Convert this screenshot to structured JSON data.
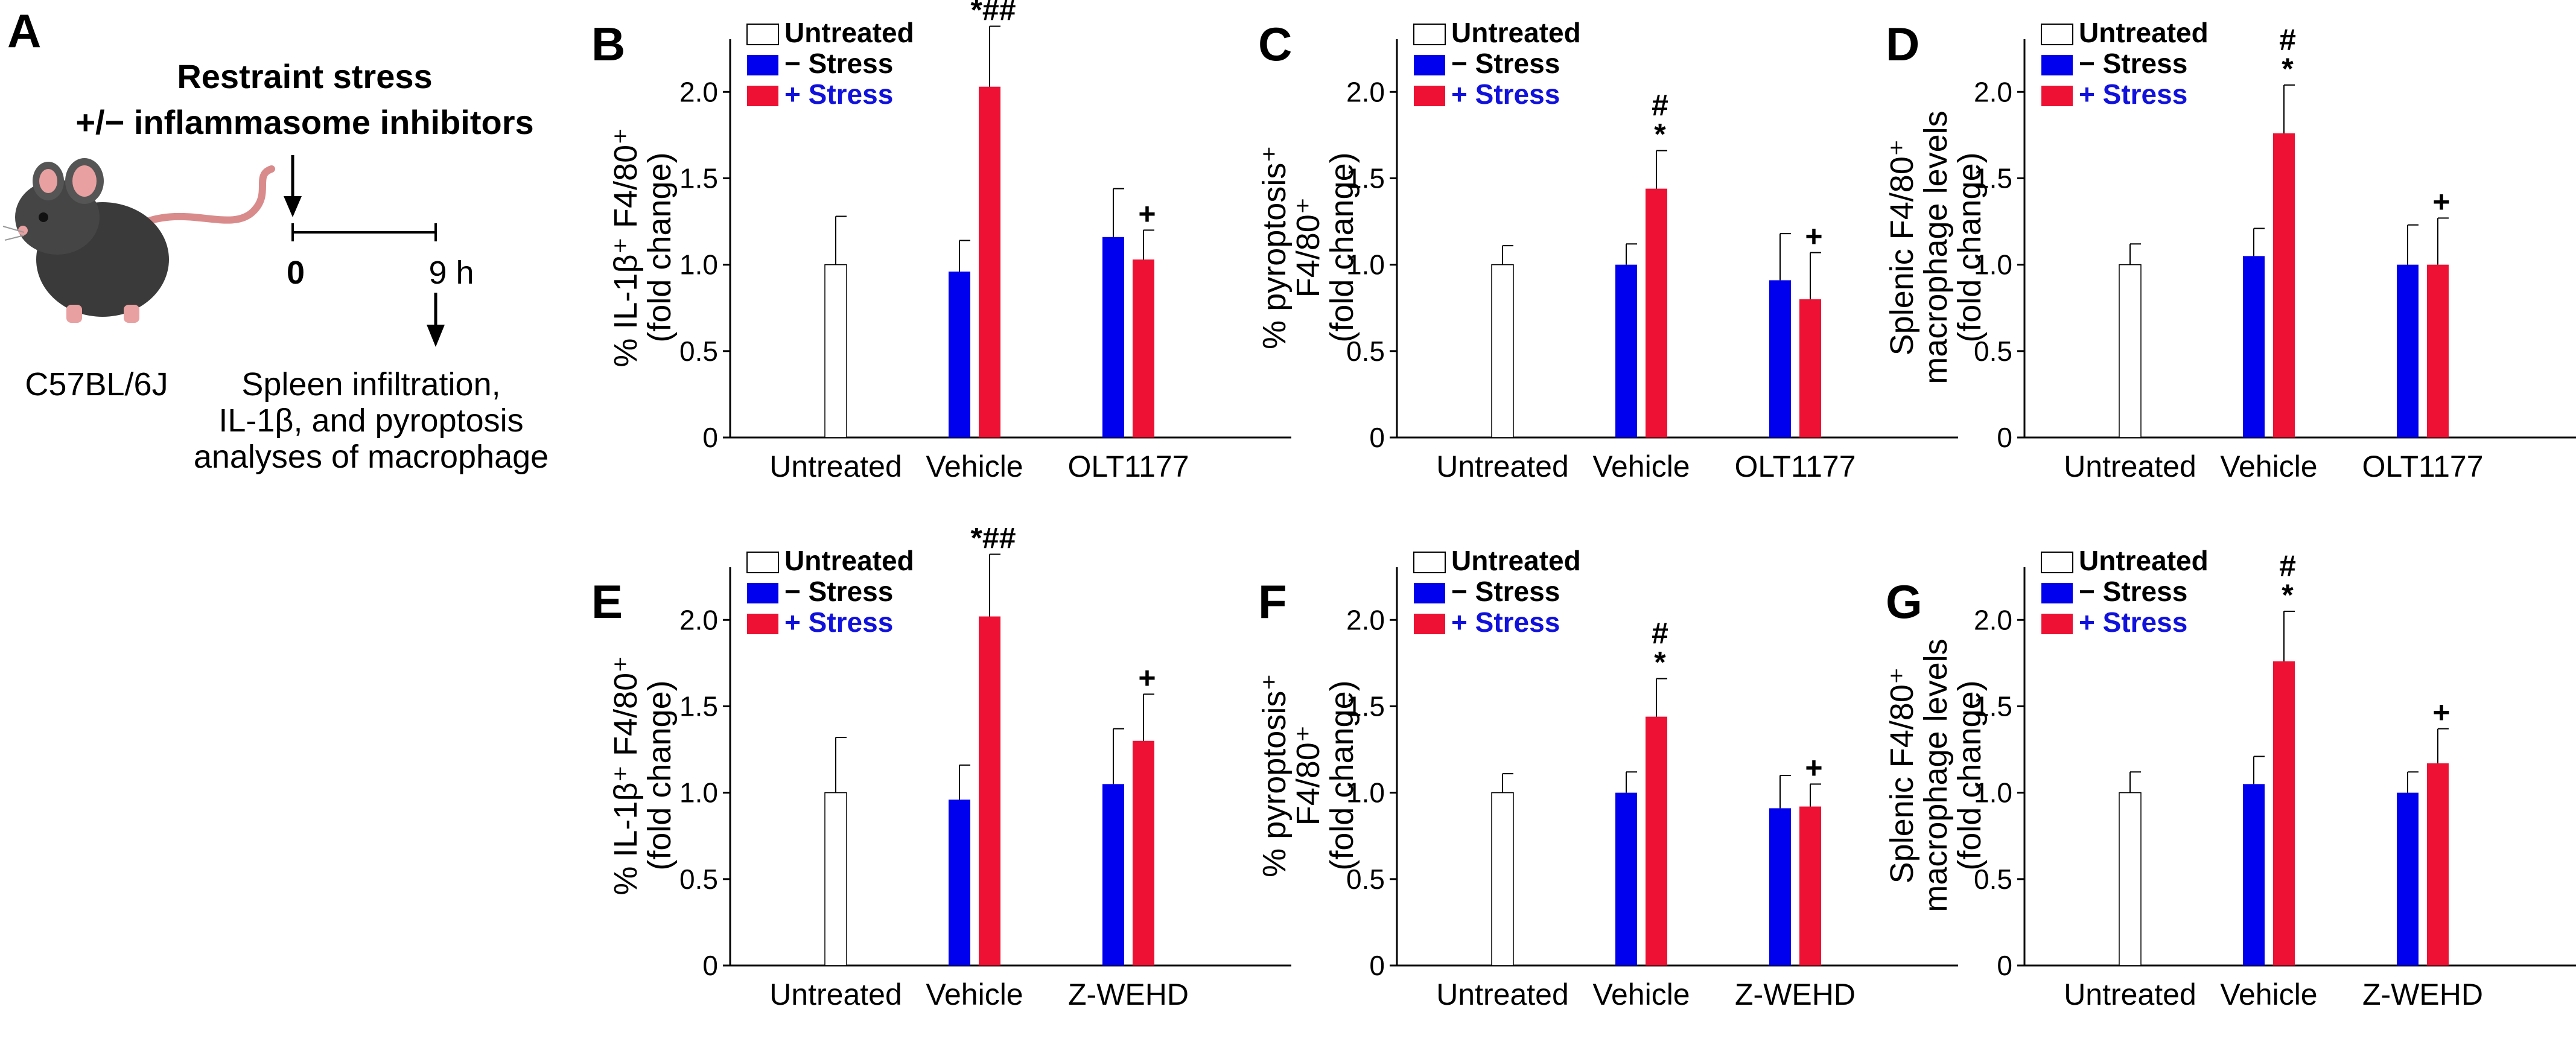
{
  "schematic": {
    "panel_letter": "A",
    "title_line1": "Restraint stress",
    "title_line2": "+/− inflammasome inhibitors",
    "time_start": "0",
    "time_end": "9 h",
    "strain": "C57BL/6J",
    "readout_line1": "Spleen infiltration,",
    "readout_line2": "IL-1β, and pyroptosis",
    "readout_line3": "analyses of macrophage",
    "icon": "mouse-icon"
  },
  "colors": {
    "untreated_fill": "#ffffff",
    "minus_stress": "#0000ee",
    "plus_stress": "#ee1133",
    "plus_stress_legend_text": "#1111dd",
    "axis": "#000000"
  },
  "chart_data": [
    {
      "id": "B",
      "type": "bar",
      "ylabel_line1": "% IL-1β⁺ F4/80⁺",
      "ylabel_line2": "(fold change)",
      "ylim": [
        0,
        2.2
      ],
      "yticks": [
        "0",
        "0.5",
        "1.0",
        "1.5",
        "2.0"
      ],
      "categories": [
        "Untreated",
        "Vehicle",
        "OLT1177"
      ],
      "legend": [
        "Untreated",
        "− Stress",
        "+ Stress"
      ],
      "bars": [
        {
          "group": "Untreated",
          "series": "Untreated",
          "value": 1.0,
          "error": 0.28
        },
        {
          "group": "Vehicle",
          "series": "− Stress",
          "value": 0.96,
          "error": 0.18
        },
        {
          "group": "Vehicle",
          "series": "+ Stress",
          "value": 2.03,
          "error": 0.35,
          "annotation": "*##"
        },
        {
          "group": "OLT1177",
          "series": "− Stress",
          "value": 1.16,
          "error": 0.28
        },
        {
          "group": "OLT1177",
          "series": "+ Stress",
          "value": 1.03,
          "error": 0.17,
          "annotation": "+"
        }
      ]
    },
    {
      "id": "C",
      "type": "bar",
      "ylabel_line1": "% pyroptosis⁺",
      "ylabel_line2": "F4/80⁺",
      "ylabel_line3": "(fold change)",
      "ylim": [
        0,
        2.2
      ],
      "yticks": [
        "0",
        "0.5",
        "1.0",
        "1.5",
        "2.0"
      ],
      "categories": [
        "Untreated",
        "Vehicle",
        "OLT1177"
      ],
      "legend": [
        "Untreated",
        "− Stress",
        "+ Stress"
      ],
      "bars": [
        {
          "group": "Untreated",
          "series": "Untreated",
          "value": 1.0,
          "error": 0.11
        },
        {
          "group": "Vehicle",
          "series": "− Stress",
          "value": 1.0,
          "error": 0.12
        },
        {
          "group": "Vehicle",
          "series": "+ Stress",
          "value": 1.44,
          "error": 0.22,
          "annotation": "#\n*"
        },
        {
          "group": "OLT1177",
          "series": "− Stress",
          "value": 0.91,
          "error": 0.27
        },
        {
          "group": "OLT1177",
          "series": "+ Stress",
          "value": 0.8,
          "error": 0.27,
          "annotation": "+"
        }
      ]
    },
    {
      "id": "D",
      "type": "bar",
      "ylabel_line1": "Splenic F4/80⁺",
      "ylabel_line2": "macrophage levels",
      "ylabel_line3": "(fold change)",
      "ylim": [
        0,
        2.2
      ],
      "yticks": [
        "0",
        "0.5",
        "1.0",
        "1.5",
        "2.0"
      ],
      "categories": [
        "Untreated",
        "Vehicle",
        "OLT1177"
      ],
      "legend": [
        "Untreated",
        "− Stress",
        "+ Stress"
      ],
      "bars": [
        {
          "group": "Untreated",
          "series": "Untreated",
          "value": 1.0,
          "error": 0.12
        },
        {
          "group": "Vehicle",
          "series": "− Stress",
          "value": 1.05,
          "error": 0.16
        },
        {
          "group": "Vehicle",
          "series": "+ Stress",
          "value": 1.76,
          "error": 0.28,
          "annotation": "#\n*"
        },
        {
          "group": "OLT1177",
          "series": "− Stress",
          "value": 1.0,
          "error": 0.23
        },
        {
          "group": "OLT1177",
          "series": "+ Stress",
          "value": 1.0,
          "error": 0.27,
          "annotation": "+"
        }
      ]
    },
    {
      "id": "E",
      "type": "bar",
      "ylabel_line1": "% IL-1β⁺ F4/80⁺",
      "ylabel_line2": "(fold change)",
      "ylim": [
        0,
        2.2
      ],
      "yticks": [
        "0",
        "0.5",
        "1.0",
        "1.5",
        "2.0"
      ],
      "categories": [
        "Untreated",
        "Vehicle",
        "Z-WEHD"
      ],
      "legend": [
        "Untreated",
        "− Stress",
        "+ Stress"
      ],
      "bars": [
        {
          "group": "Untreated",
          "series": "Untreated",
          "value": 1.0,
          "error": 0.32
        },
        {
          "group": "Vehicle",
          "series": "− Stress",
          "value": 0.96,
          "error": 0.2
        },
        {
          "group": "Vehicle",
          "series": "+ Stress",
          "value": 2.02,
          "error": 0.36,
          "annotation": "*##"
        },
        {
          "group": "Z-WEHD",
          "series": "− Stress",
          "value": 1.05,
          "error": 0.32
        },
        {
          "group": "Z-WEHD",
          "series": "+ Stress",
          "value": 1.3,
          "error": 0.27,
          "annotation": "+"
        }
      ]
    },
    {
      "id": "F",
      "type": "bar",
      "ylabel_line1": "% pyroptosis⁺",
      "ylabel_line2": "F4/80⁺",
      "ylabel_line3": "(fold change)",
      "ylim": [
        0,
        2.2
      ],
      "yticks": [
        "0",
        "0.5",
        "1.0",
        "1.5",
        "2.0"
      ],
      "categories": [
        "Untreated",
        "Vehicle",
        "Z-WEHD"
      ],
      "legend": [
        "Untreated",
        "− Stress",
        "+ Stress"
      ],
      "bars": [
        {
          "group": "Untreated",
          "series": "Untreated",
          "value": 1.0,
          "error": 0.11
        },
        {
          "group": "Vehicle",
          "series": "− Stress",
          "value": 1.0,
          "error": 0.12
        },
        {
          "group": "Vehicle",
          "series": "+ Stress",
          "value": 1.44,
          "error": 0.22,
          "annotation": "#\n*"
        },
        {
          "group": "Z-WEHD",
          "series": "− Stress",
          "value": 0.91,
          "error": 0.19
        },
        {
          "group": "Z-WEHD",
          "series": "+ Stress",
          "value": 0.92,
          "error": 0.13,
          "annotation": "+"
        }
      ]
    },
    {
      "id": "G",
      "type": "bar",
      "ylabel_line1": "Splenic F4/80⁺",
      "ylabel_line2": "macrophage levels",
      "ylabel_line3": "(fold change)",
      "ylim": [
        0,
        2.2
      ],
      "yticks": [
        "0",
        "0.5",
        "1.0",
        "1.5",
        "2.0"
      ],
      "categories": [
        "Untreated",
        "Vehicle",
        "Z-WEHD"
      ],
      "legend": [
        "Untreated",
        "− Stress",
        "+ Stress"
      ],
      "bars": [
        {
          "group": "Untreated",
          "series": "Untreated",
          "value": 1.0,
          "error": 0.12
        },
        {
          "group": "Vehicle",
          "series": "− Stress",
          "value": 1.05,
          "error": 0.16
        },
        {
          "group": "Vehicle",
          "series": "+ Stress",
          "value": 1.76,
          "error": 0.29,
          "annotation": "#\n*"
        },
        {
          "group": "Z-WEHD",
          "series": "− Stress",
          "value": 1.0,
          "error": 0.12
        },
        {
          "group": "Z-WEHD",
          "series": "+ Stress",
          "value": 1.17,
          "error": 0.2,
          "annotation": "+"
        }
      ]
    }
  ]
}
